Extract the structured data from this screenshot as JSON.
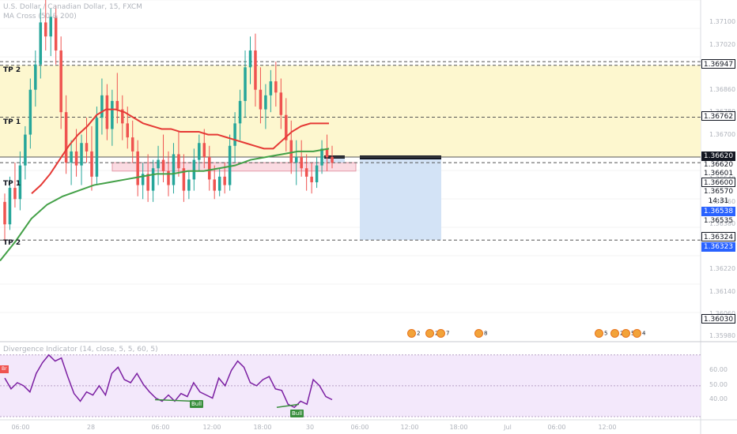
{
  "header": {
    "symbol_line": "U.S. Dollar / Canadian Dollar, 15, FXCM",
    "ma_line": "MA Cross (50 & 200)"
  },
  "levels": {
    "tp2_upper": "TP 2",
    "tp1_upper": "TP 1",
    "tp1_lower": "TP 1",
    "tp2_lower": "TP 2"
  },
  "price_axis": {
    "ticks": [
      "1.37100",
      "1.37020",
      "1.36940",
      "1.36860",
      "1.36780",
      "1.36700",
      "1.36620",
      "1.36540",
      "1.36460",
      "1.36380",
      "1.36300",
      "1.36220",
      "1.36140",
      "1.36060",
      "1.35980"
    ],
    "labels": {
      "p1": "1.36947",
      "p2": "1.36762",
      "p3": "1.36620",
      "p4": "1.36620",
      "p5": "1.36601",
      "p6": "1.36600",
      "p7": "1.36570",
      "countdown": "14:31",
      "p8": "1.36538",
      "p9": "1.36535",
      "p10": "1.36324",
      "p11": "1.36323",
      "p12": "1.36030"
    }
  },
  "indicator": {
    "label": "Divergence Indicator (14, close, 5, 5, 60, 5)",
    "ticks": [
      "60.00",
      "50.00",
      "40.00"
    ],
    "bull_1": "Bull",
    "bull_2": "Bull",
    "bear_tag": "Br"
  },
  "time_axis": {
    "ticks": [
      "06:00",
      "28",
      "06:00",
      "12:00",
      "18:00",
      "30",
      "06:00",
      "12:00",
      "18:00",
      "Jul",
      "06:00",
      "12:00"
    ]
  },
  "events": {
    "e1": "2",
    "e2": "2",
    "e3": "7",
    "e4": "8",
    "e5": "5",
    "e6": "2",
    "e7": "5",
    "e8": "4"
  },
  "colors": {
    "up": "#26a69a",
    "down": "#ef5350",
    "ma50": "#e53935",
    "ma200": "#43a047",
    "rsi": "#7b1fa2",
    "tp_zone": "#fdf7cf",
    "stop_zone": "#fadbe2",
    "target_zone": "#d3e3f6"
  },
  "chart_data": {
    "type": "candlestick",
    "title": "U.S. Dollar / Canadian Dollar, 15, FXCM",
    "ylim": [
      1.3597,
      1.3718
    ],
    "candles": [
      [
        1.3646,
        1.3649,
        1.3632,
        1.3638
      ],
      [
        1.3638,
        1.3655,
        1.3636,
        1.3651
      ],
      [
        1.3651,
        1.366,
        1.3644,
        1.3647
      ],
      [
        1.3647,
        1.3664,
        1.3643,
        1.3659
      ],
      [
        1.3659,
        1.3673,
        1.3654,
        1.367
      ],
      [
        1.367,
        1.369,
        1.3665,
        1.3686
      ],
      [
        1.3686,
        1.37,
        1.368,
        1.3695
      ],
      [
        1.3695,
        1.3715,
        1.369,
        1.371
      ],
      [
        1.371,
        1.3718,
        1.37,
        1.3705
      ],
      [
        1.3705,
        1.3715,
        1.3698,
        1.3712
      ],
      [
        1.3712,
        1.3716,
        1.3695,
        1.37
      ],
      [
        1.37,
        1.3705,
        1.3672,
        1.3678
      ],
      [
        1.3678,
        1.3684,
        1.3656,
        1.366
      ],
      [
        1.366,
        1.3668,
        1.3652,
        1.3664
      ],
      [
        1.3664,
        1.3672,
        1.3655,
        1.3659
      ],
      [
        1.3659,
        1.367,
        1.3652,
        1.3667
      ],
      [
        1.3667,
        1.3676,
        1.366,
        1.3664
      ],
      [
        1.3664,
        1.3673,
        1.365,
        1.3655
      ],
      [
        1.3655,
        1.368,
        1.3652,
        1.3676
      ],
      [
        1.3676,
        1.369,
        1.367,
        1.3684
      ],
      [
        1.3684,
        1.3688,
        1.3668,
        1.3672
      ],
      [
        1.3672,
        1.3686,
        1.3666,
        1.3682
      ],
      [
        1.3682,
        1.3692,
        1.3674,
        1.3679
      ],
      [
        1.3679,
        1.3684,
        1.3668,
        1.3674
      ],
      [
        1.3674,
        1.368,
        1.3665,
        1.3669
      ],
      [
        1.3669,
        1.3675,
        1.366,
        1.3664
      ],
      [
        1.3664,
        1.3668,
        1.3648,
        1.3652
      ],
      [
        1.3652,
        1.366,
        1.3647,
        1.3656
      ],
      [
        1.3656,
        1.3663,
        1.3646,
        1.365
      ],
      [
        1.365,
        1.3661,
        1.3646,
        1.3658
      ],
      [
        1.3658,
        1.3666,
        1.3652,
        1.3661
      ],
      [
        1.3661,
        1.367,
        1.3653,
        1.3657
      ],
      [
        1.3657,
        1.3664,
        1.3648,
        1.3652
      ],
      [
        1.3652,
        1.3667,
        1.3649,
        1.3663
      ],
      [
        1.3663,
        1.3671,
        1.3655,
        1.3658
      ],
      [
        1.3658,
        1.3663,
        1.3646,
        1.365
      ],
      [
        1.365,
        1.3657,
        1.3647,
        1.3654
      ],
      [
        1.3654,
        1.3665,
        1.365,
        1.3661
      ],
      [
        1.3661,
        1.367,
        1.3657,
        1.3667
      ],
      [
        1.3667,
        1.3672,
        1.3658,
        1.3662
      ],
      [
        1.3662,
        1.3666,
        1.365,
        1.3654
      ],
      [
        1.3654,
        1.3659,
        1.3647,
        1.365
      ],
      [
        1.365,
        1.3658,
        1.3648,
        1.3655
      ],
      [
        1.3655,
        1.366,
        1.3649,
        1.3652
      ],
      [
        1.3652,
        1.367,
        1.365,
        1.3666
      ],
      [
        1.3666,
        1.3678,
        1.366,
        1.3674
      ],
      [
        1.3674,
        1.3686,
        1.3668,
        1.3682
      ],
      [
        1.3682,
        1.37,
        1.3676,
        1.3694
      ],
      [
        1.3694,
        1.3705,
        1.3688,
        1.37
      ],
      [
        1.37,
        1.3706,
        1.368,
        1.3686
      ],
      [
        1.3686,
        1.3694,
        1.3674,
        1.3679
      ],
      [
        1.3679,
        1.3688,
        1.3672,
        1.3684
      ],
      [
        1.3684,
        1.3693,
        1.3678,
        1.3689
      ],
      [
        1.3689,
        1.3696,
        1.368,
        1.3685
      ],
      [
        1.3685,
        1.369,
        1.3672,
        1.3677
      ],
      [
        1.3677,
        1.3683,
        1.3664,
        1.3668
      ],
      [
        1.3668,
        1.3675,
        1.3656,
        1.366
      ],
      [
        1.366,
        1.3668,
        1.3652,
        1.3662
      ],
      [
        1.3662,
        1.3668,
        1.3655,
        1.3658
      ],
      [
        1.3658,
        1.3663,
        1.365,
        1.3655
      ],
      [
        1.3655,
        1.366,
        1.3649,
        1.3653
      ],
      [
        1.3653,
        1.3662,
        1.3651,
        1.3659
      ],
      [
        1.3659,
        1.3668,
        1.3656,
        1.3665
      ],
      [
        1.3665,
        1.367,
        1.3657,
        1.3662
      ],
      [
        1.3662,
        1.3666,
        1.3658,
        1.366
      ]
    ],
    "ma50": [
      1.3649,
      1.3652,
      1.3656,
      1.3661,
      1.3666,
      1.367,
      1.3673,
      1.3677,
      1.3679,
      1.3679,
      1.3678,
      1.3676,
      1.3674,
      1.3673,
      1.3672,
      1.3672,
      1.3671,
      1.3671,
      1.3671,
      1.367,
      1.367,
      1.3669,
      1.3668,
      1.3667,
      1.3666,
      1.3665,
      1.3665,
      1.3668,
      1.3671,
      1.3673,
      1.3674,
      1.3674,
      1.3674
    ],
    "ma200": [
      1.3625,
      1.3632,
      1.364,
      1.3645,
      1.3648,
      1.365,
      1.3652,
      1.3653,
      1.3654,
      1.3655,
      1.3656,
      1.3656,
      1.3657,
      1.3657,
      1.3658,
      1.3659,
      1.3661,
      1.3662,
      1.3663,
      1.3664,
      1.3664,
      1.3665
    ],
    "rsi": [
      55,
      48,
      52,
      50,
      46,
      58,
      65,
      70,
      66,
      68,
      56,
      45,
      40,
      46,
      44,
      50,
      44,
      58,
      62,
      54,
      52,
      58,
      51,
      46,
      42,
      40,
      44,
      40,
      45,
      43,
      52,
      46,
      44,
      42,
      55,
      50,
      60,
      66,
      62,
      52,
      50,
      54,
      56,
      48,
      47,
      38,
      36,
      40,
      38,
      54,
      50,
      43,
      41
    ],
    "indicator_ylim": [
      30,
      75
    ]
  }
}
